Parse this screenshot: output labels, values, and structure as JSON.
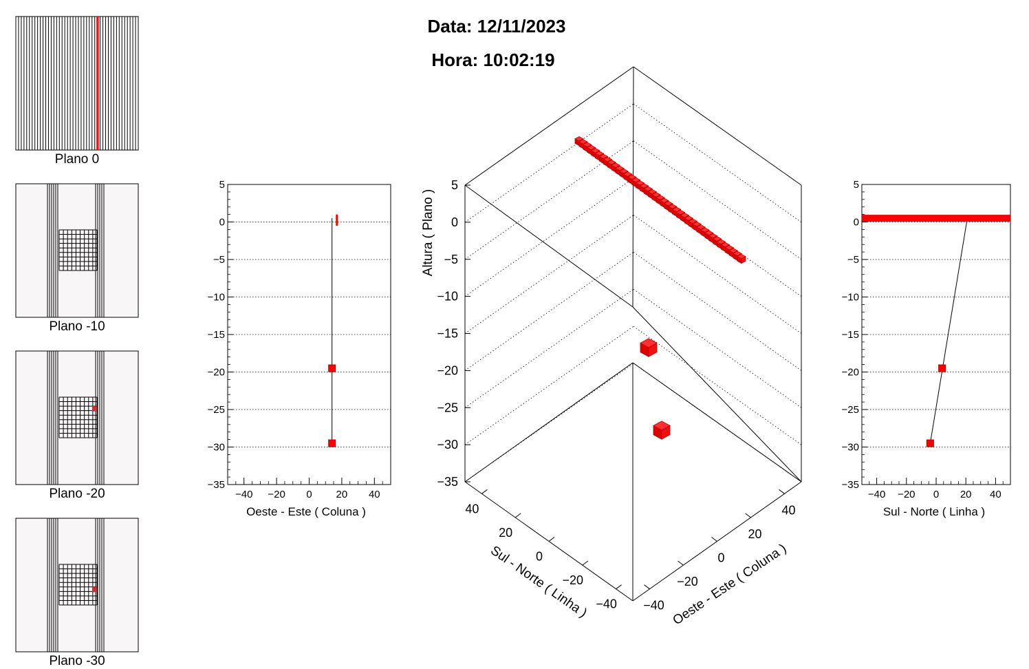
{
  "header": {
    "date_text": "Data: 12/11/2023",
    "time_text": "Hora: 10:02:19"
  },
  "plane_maps": [
    {
      "label": "Plano 0"
    },
    {
      "label": "Plano -10"
    },
    {
      "label": "Plano -20"
    },
    {
      "label": "Plano -30"
    }
  ],
  "chart_data": [
    {
      "type": "scatter",
      "name": "projection-oeste-este",
      "xlabel": "Oeste - Este ( Coluna )",
      "ylabel": "",
      "xlim": [
        -50,
        50
      ],
      "ylim": [
        -35,
        5
      ],
      "xticks": [
        -40,
        -20,
        0,
        20,
        40
      ],
      "yticks": [
        5,
        0,
        -5,
        -10,
        -15,
        -20,
        -25,
        -30,
        -35
      ],
      "grid": "horizontal-dotted",
      "points": [
        {
          "x": 14,
          "y": -19.5
        },
        {
          "x": 14,
          "y": -29.5
        }
      ],
      "hit_band": {
        "x": 17,
        "y0": -0.5,
        "y1": 1
      },
      "track": {
        "x0": 14,
        "y0": -29.5,
        "x1": 14,
        "y1": 0.5
      }
    },
    {
      "type": "scatter",
      "name": "projection-sul-norte",
      "xlabel": "Sul - Norte ( Linha )",
      "ylabel": "",
      "xlim": [
        -50,
        50
      ],
      "ylim": [
        -35,
        5
      ],
      "xticks": [
        -40,
        -20,
        0,
        20,
        40
      ],
      "yticks": [
        5,
        0,
        -5,
        -10,
        -15,
        -20,
        -25,
        -30,
        -35
      ],
      "grid": "horizontal-dotted",
      "points": [
        {
          "x": 4,
          "y": -19.5
        },
        {
          "x": -4,
          "y": -29.5
        }
      ],
      "hit_band": {
        "x0": -50,
        "x1": 50,
        "y": 0.5
      },
      "track": {
        "x0": -4,
        "y0": -29.5,
        "x1": 21,
        "y1": 0.5
      }
    },
    {
      "type": "scatter",
      "name": "view-3d",
      "zlabel": "Altura ( Plano )",
      "xlabel": "Oeste - Este ( Coluna )",
      "ylabel": "Sul - Norte ( Linha )",
      "zlim": [
        -35,
        5
      ],
      "xlim": [
        -50,
        50
      ],
      "ylim": [
        -50,
        50
      ],
      "zticks": [
        5,
        0,
        -5,
        -10,
        -15,
        -20,
        -25,
        -30,
        -35
      ],
      "xticks": [
        -40,
        -20,
        0,
        20,
        40
      ],
      "yticks": [
        -40,
        -20,
        0,
        20,
        40
      ],
      "cubes": [
        {
          "x": 14,
          "y": 4,
          "z": -19.5
        },
        {
          "x": 14,
          "y": -4,
          "z": -29.5
        }
      ],
      "hit_row": {
        "x": 14,
        "y0": -50,
        "y1": 50,
        "z": 0.5
      }
    }
  ],
  "colors": {
    "hit": "#ff0000",
    "hit_dark": "#c00000",
    "pad_bg": "#f8f6f6",
    "axis": "#000000"
  }
}
